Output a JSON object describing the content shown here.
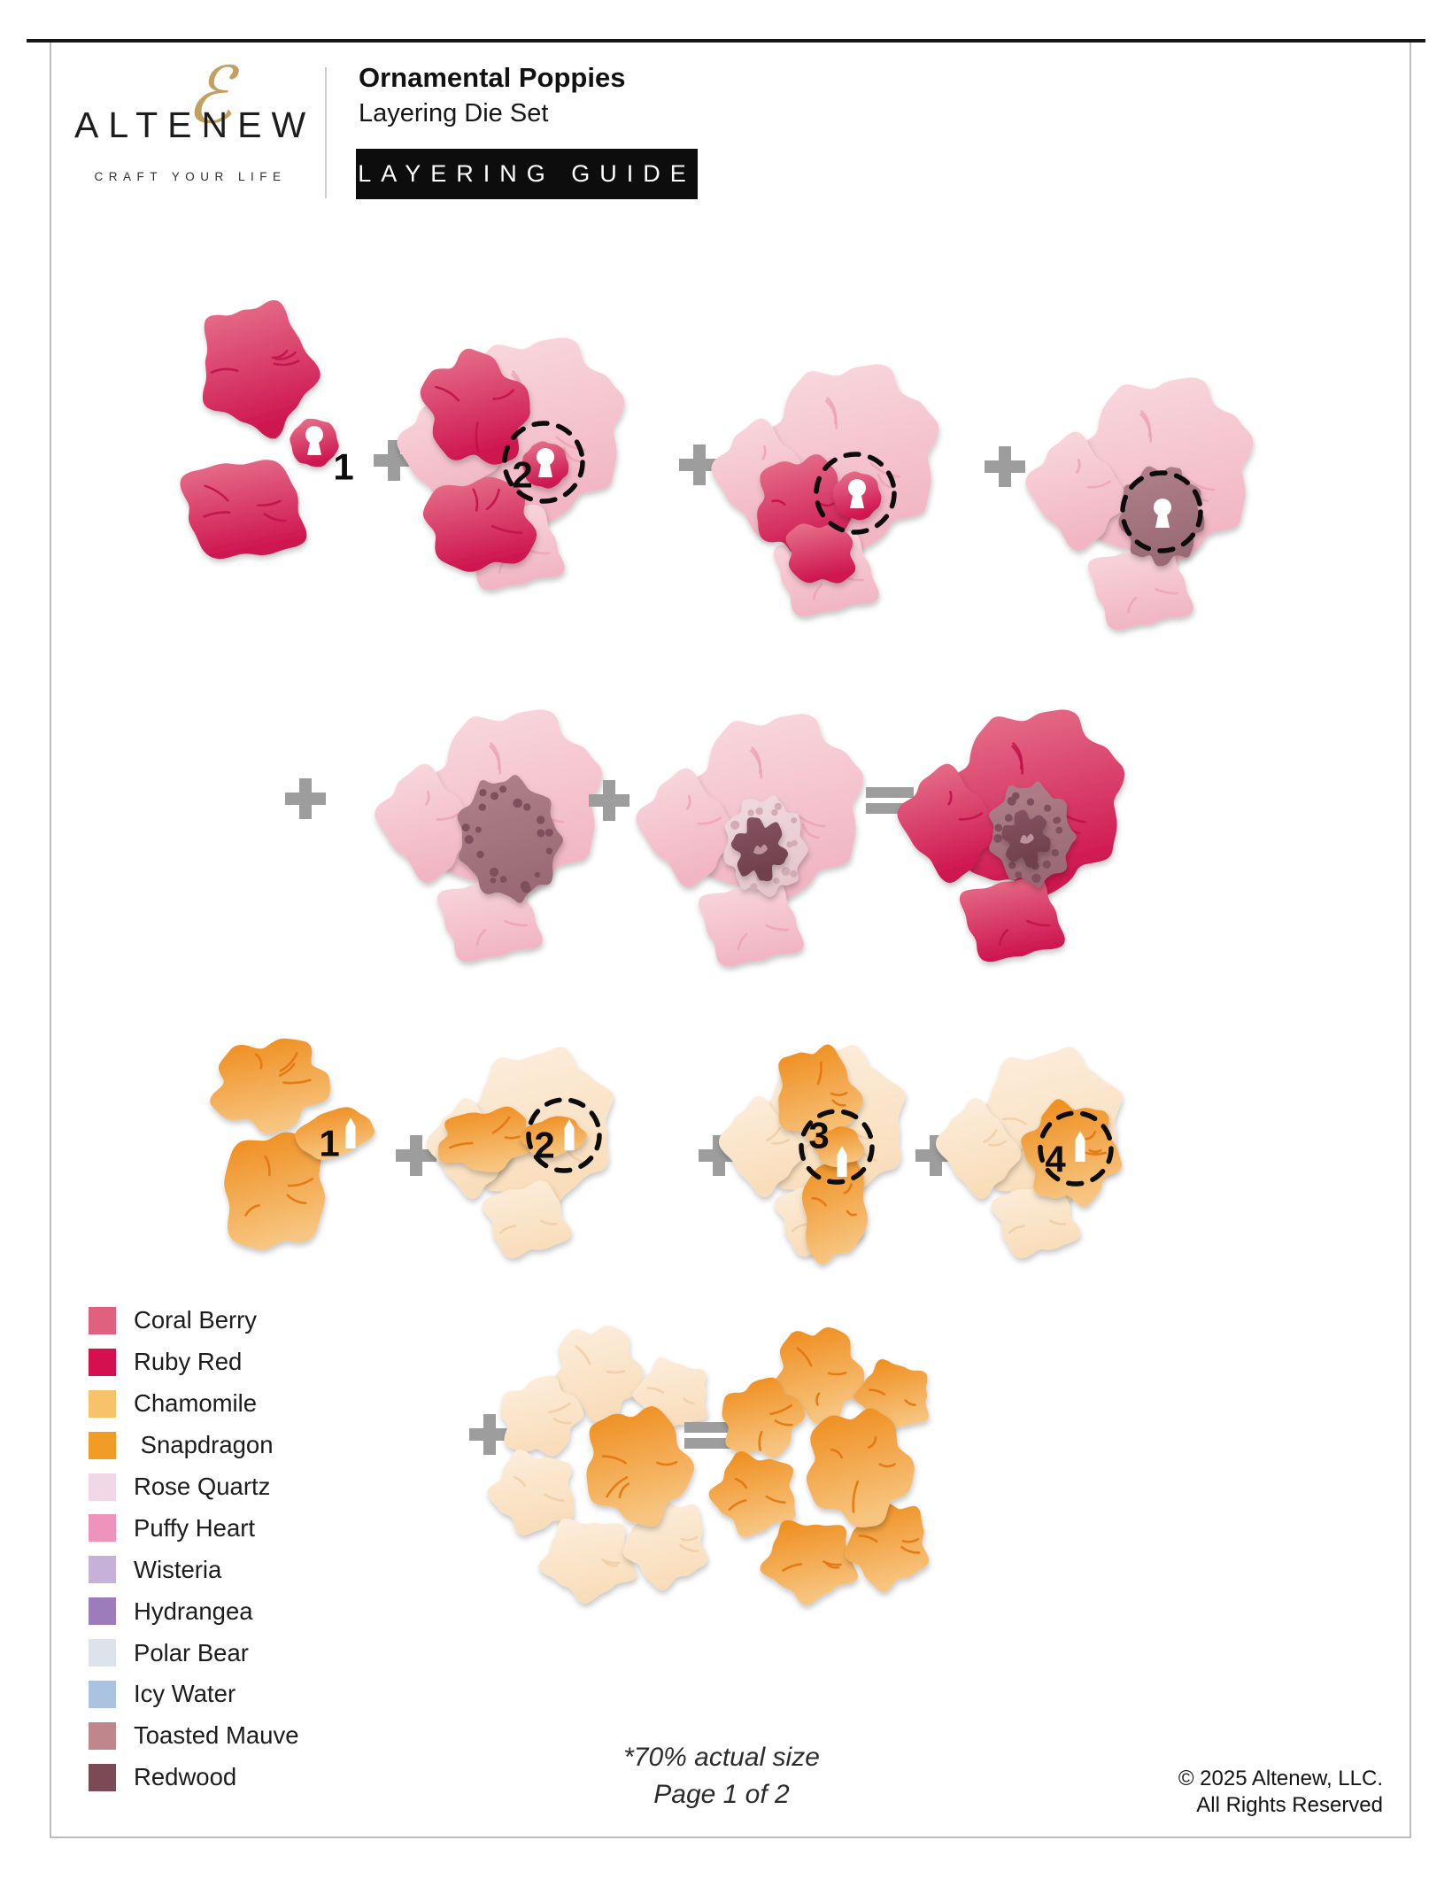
{
  "header": {
    "brand": "ALTENEW",
    "brand_ampersand": "ℰ",
    "tagline": "CRAFT YOUR LIFE",
    "title": "Ornamental Poppies",
    "subtitle": "Layering Die Set",
    "badge": "LAYERING GUIDE"
  },
  "diagram": {
    "rows": [
      {
        "name": "pink-poppy-steps-1",
        "cells": [
          {
            "type": "flower",
            "flower": "p1",
            "label": "1",
            "dashed_circle": false
          },
          {
            "type": "operator",
            "glyph": "+"
          },
          {
            "type": "flower",
            "flower": "p2",
            "label": "2",
            "dashed_circle": true
          },
          {
            "type": "operator",
            "glyph": "+"
          },
          {
            "type": "flower",
            "flower": "p3",
            "label": "",
            "dashed_circle": true
          },
          {
            "type": "operator",
            "glyph": "+"
          },
          {
            "type": "flower",
            "flower": "p4",
            "label": "",
            "dashed_circle": true
          }
        ]
      },
      {
        "name": "pink-poppy-steps-2",
        "cells": [
          {
            "type": "operator",
            "glyph": "+"
          },
          {
            "type": "flower",
            "flower": "p5",
            "label": "",
            "dashed_circle": false
          },
          {
            "type": "operator",
            "glyph": "+"
          },
          {
            "type": "flower",
            "flower": "p6",
            "label": "",
            "dashed_circle": false
          },
          {
            "type": "operator",
            "glyph": "="
          },
          {
            "type": "flower",
            "flower": "p7",
            "label": "",
            "dashed_circle": false
          }
        ]
      },
      {
        "name": "orange-poppy-steps",
        "cells": [
          {
            "type": "flower",
            "flower": "o1",
            "label": "1",
            "dashed_circle": false
          },
          {
            "type": "operator",
            "glyph": "+"
          },
          {
            "type": "flower",
            "flower": "o2",
            "label": "2",
            "dashed_circle": true
          },
          {
            "type": "operator",
            "glyph": "+"
          },
          {
            "type": "flower",
            "flower": "o3",
            "label": "3",
            "dashed_circle": true
          },
          {
            "type": "operator",
            "glyph": "+"
          },
          {
            "type": "flower",
            "flower": "o4",
            "label": "4",
            "dashed_circle": true
          }
        ]
      },
      {
        "name": "orange-poppy-final",
        "cells": [
          {
            "type": "operator",
            "glyph": "+"
          },
          {
            "type": "flower",
            "flower": "c8",
            "label": "",
            "dashed_circle": false
          },
          {
            "type": "operator",
            "glyph": "="
          },
          {
            "type": "flower",
            "flower": "c9",
            "label": "",
            "dashed_circle": false
          }
        ]
      }
    ]
  },
  "legend": [
    {
      "name": "Coral Berry",
      "hex": "#e0607f"
    },
    {
      "name": "Ruby Red",
      "hex": "#d51050"
    },
    {
      "name": "Chamomile",
      "hex": "#f6c26a"
    },
    {
      "name": " Snapdragon",
      "hex": "#f09c27"
    },
    {
      "name": "Rose Quartz",
      "hex": "#f2d8e6"
    },
    {
      "name": "Puffy Heart",
      "hex": "#ee93bb"
    },
    {
      "name": "Wisteria",
      "hex": "#c6b2d8"
    },
    {
      "name": "Hydrangea",
      "hex": "#9c7cba"
    },
    {
      "name": "Polar Bear",
      "hex": "#dce3eb"
    },
    {
      "name": "Icy Water",
      "hex": "#abc2e1"
    },
    {
      "name": "Toasted Mauve",
      "hex": "#bf868c"
    },
    {
      "name": "Redwood",
      "hex": "#7c4a57"
    }
  ],
  "footer": {
    "scale_note": "*70% actual size",
    "page_note": "Page 1 of 2",
    "copyright_line1": "© 2025 Altenew, LLC.",
    "copyright_line2": "All Rights Reserved"
  }
}
